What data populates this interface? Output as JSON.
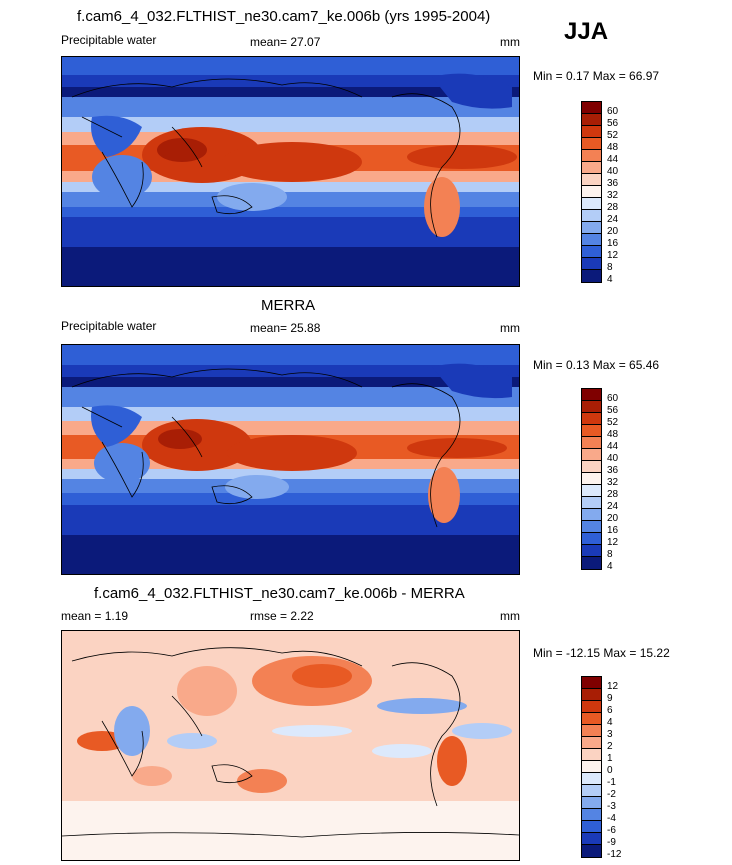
{
  "season": "JJA",
  "panels": [
    {
      "id": "model",
      "title": "f.cam6_4_032.FLTHIST_ne30.cam7_ke.006b (yrs 1995-2004)",
      "left_label": "Precipitable water",
      "mean_label": "mean=  27.07",
      "units": "mm",
      "minmax": "Min =   0.17 Max =  66.97",
      "ticks": [
        "60",
        "56",
        "52",
        "48",
        "44",
        "40",
        "36",
        "32",
        "28",
        "24",
        "20",
        "16",
        "12",
        "8",
        "4"
      ]
    },
    {
      "id": "obs",
      "title": "MERRA",
      "left_label": "Precipitable water",
      "mean_label": "mean=  25.88",
      "units": "mm",
      "minmax": "Min =   0.13 Max =  65.46",
      "ticks": [
        "60",
        "56",
        "52",
        "48",
        "44",
        "40",
        "36",
        "32",
        "28",
        "24",
        "20",
        "16",
        "12",
        "8",
        "4"
      ]
    },
    {
      "id": "diff",
      "title": "f.cam6_4_032.FLTHIST_ne30.cam7_ke.006b - MERRA",
      "left_label": "mean =   1.19",
      "mean_label": "rmse =   2.22",
      "units": "mm",
      "minmax": "Min = -12.15 Max =  15.22",
      "ticks": [
        "12",
        "9",
        "6",
        "4",
        "3",
        "2",
        "1",
        "0",
        "-1",
        "-2",
        "-3",
        "-4",
        "-6",
        "-9",
        "-12"
      ]
    }
  ],
  "colors": {
    "abs": [
      "#7f0000",
      "#a81e05",
      "#cf380e",
      "#e85a24",
      "#f38154",
      "#f9a98a",
      "#fbd3c2",
      "#fdf3ee",
      "#dce9fc",
      "#b3cdf7",
      "#83aaee",
      "#5484e3",
      "#2f5fd6",
      "#1a3ab8",
      "#0b1a7a"
    ],
    "diff": [
      "#7f0000",
      "#a81e05",
      "#cf380e",
      "#e85a24",
      "#f38154",
      "#f9a98a",
      "#fbd3c2",
      "#fdf3ee",
      "#dce9fc",
      "#b3cdf7",
      "#83aaee",
      "#5484e3",
      "#2f5fd6",
      "#1a3ab8",
      "#0b1a7a"
    ]
  }
}
